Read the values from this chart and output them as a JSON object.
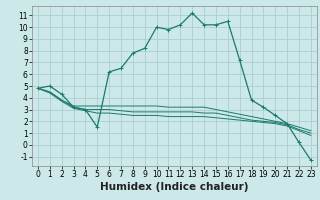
{
  "title": "",
  "xlabel": "Humidex (Indice chaleur)",
  "xlim": [
    -0.5,
    23.5
  ],
  "ylim": [
    -1.8,
    11.8
  ],
  "xticks": [
    0,
    1,
    2,
    3,
    4,
    5,
    6,
    7,
    8,
    9,
    10,
    11,
    12,
    13,
    14,
    15,
    16,
    17,
    18,
    19,
    20,
    21,
    22,
    23
  ],
  "yticks": [
    -1,
    0,
    1,
    2,
    3,
    4,
    5,
    6,
    7,
    8,
    9,
    10,
    11
  ],
  "background_color": "#cce8e8",
  "grid_color": "#aad0d0",
  "line_color": "#1a7a6e",
  "series": [
    [
      4.8,
      5.0,
      4.3,
      3.2,
      3.0,
      1.5,
      6.2,
      6.5,
      7.8,
      8.2,
      10.0,
      9.8,
      10.2,
      11.2,
      10.2,
      10.2,
      10.5,
      7.2,
      3.8,
      3.2,
      2.5,
      1.8,
      0.2,
      -1.3
    ],
    [
      4.8,
      4.5,
      3.8,
      3.3,
      3.3,
      3.3,
      3.3,
      3.3,
      3.3,
      3.3,
      3.3,
      3.2,
      3.2,
      3.2,
      3.2,
      3.0,
      2.8,
      2.6,
      2.4,
      2.2,
      2.0,
      1.8,
      1.5,
      1.2
    ],
    [
      4.8,
      4.5,
      3.8,
      3.2,
      3.0,
      3.0,
      3.0,
      2.9,
      2.8,
      2.8,
      2.8,
      2.8,
      2.8,
      2.8,
      2.7,
      2.7,
      2.5,
      2.3,
      2.1,
      2.0,
      1.9,
      1.7,
      1.3,
      1.0
    ],
    [
      4.8,
      4.4,
      3.7,
      3.1,
      2.9,
      2.7,
      2.7,
      2.6,
      2.5,
      2.5,
      2.5,
      2.4,
      2.4,
      2.4,
      2.4,
      2.3,
      2.2,
      2.1,
      2.0,
      1.9,
      1.8,
      1.6,
      1.2,
      0.8
    ]
  ],
  "tick_fontsize": 5.5,
  "label_fontsize": 7.5
}
